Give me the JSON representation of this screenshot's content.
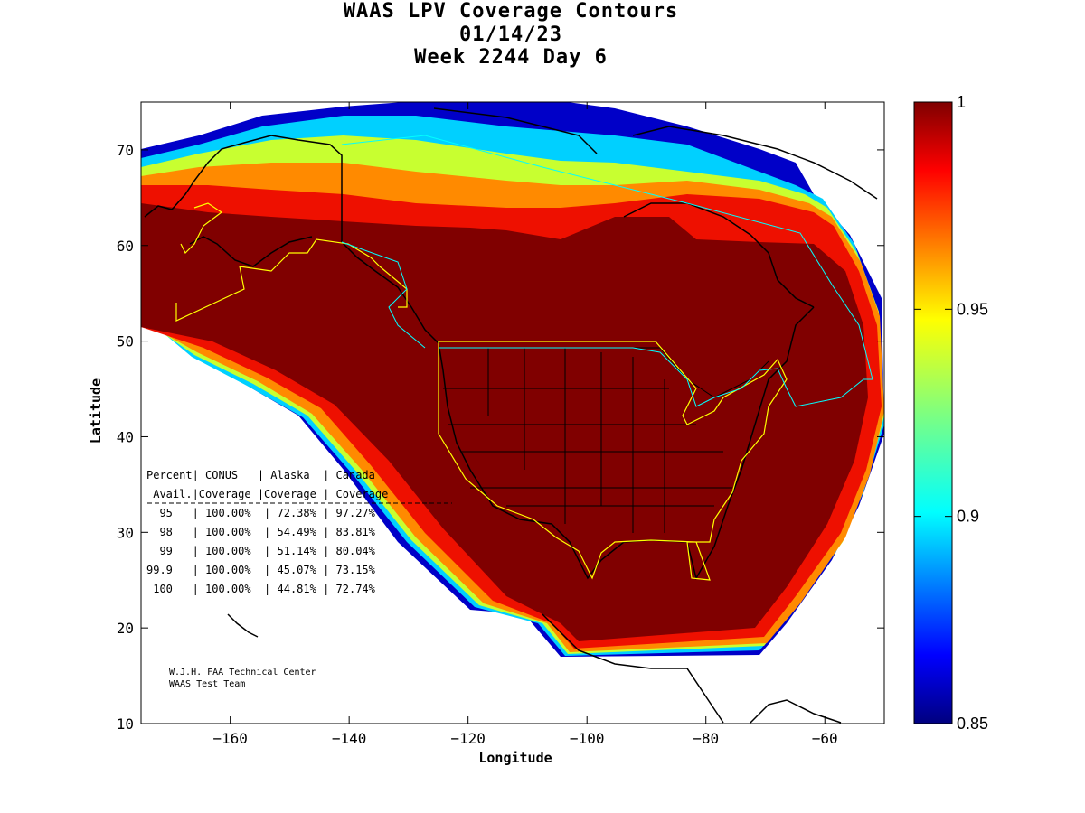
{
  "title": {
    "line1": "WAAS LPV Coverage Contours",
    "line2": "01/14/23",
    "line3": "Week 2244 Day 6"
  },
  "axes": {
    "xlabel": "Longitude",
    "ylabel": "Latitude",
    "xlim": [
      -175,
      -50
    ],
    "ylim": [
      10,
      75
    ],
    "xticks": [
      -160,
      -140,
      -120,
      -100,
      -80,
      -60
    ],
    "yticks": [
      10,
      20,
      30,
      40,
      50,
      60,
      70
    ]
  },
  "colorbar": {
    "min": 0.85,
    "max": 1.0,
    "ticks": [
      "1",
      "0.95",
      "0.9",
      "0.85"
    ],
    "colormap": "jet"
  },
  "table": {
    "header1": "Percent| CONUS   | Alaska  | Canada",
    "header2": " Avail.|Coverage |Coverage | Coverage",
    "rows": [
      "  95   | 100.00%  | 72.38% | 97.27%",
      "  98   | 100.00%  | 54.49% | 83.81%",
      "  99   | 100.00%  | 51.14% | 80.04%",
      "99.9   | 100.00%  | 45.07% | 73.15%",
      " 100   | 100.00%  | 44.81% | 72.74%"
    ]
  },
  "credit": {
    "line1": "W.J.H. FAA Technical Center",
    "line2": "WAAS Test Team"
  },
  "colors": {
    "core": "#800000",
    "boundary_yellow": "#ffff00",
    "boundary_cyan": "#00ffff"
  }
}
